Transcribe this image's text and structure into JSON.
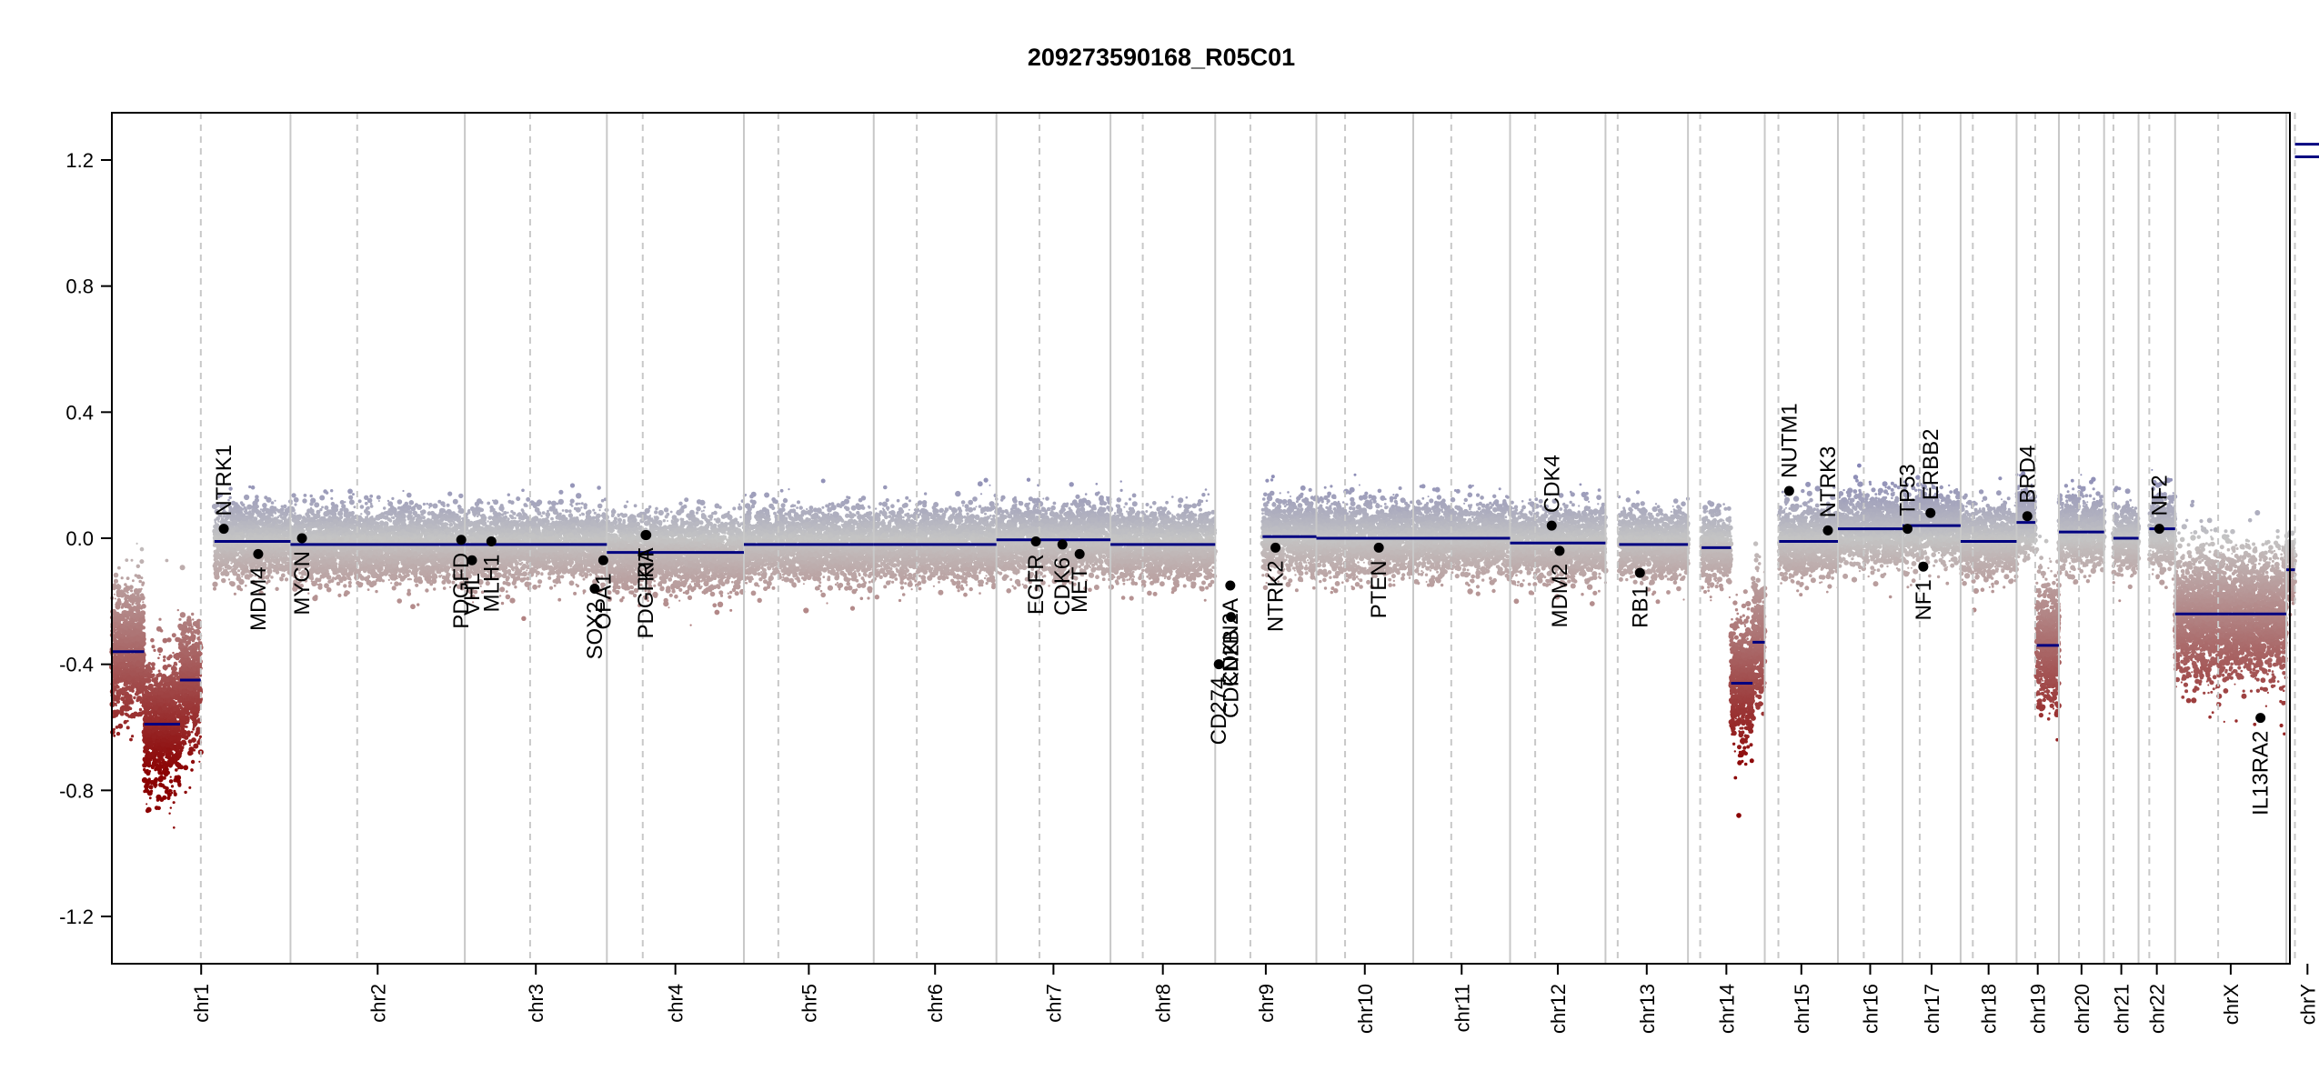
{
  "chart_data": {
    "type": "scatter",
    "title": "209273590168_R05C01",
    "xlabel": "",
    "ylabel": "",
    "ylim": [
      -1.35,
      1.35
    ],
    "y_ticks": [
      {
        "value": 1.2,
        "label": "1.2"
      },
      {
        "value": 0.8,
        "label": "0.8"
      },
      {
        "value": 0.4,
        "label": "0.4"
      },
      {
        "value": 0.0,
        "label": "0.0"
      },
      {
        "value": -0.4,
        "label": "-0.4"
      },
      {
        "value": -0.8,
        "label": "-0.8"
      },
      {
        "value": -1.2,
        "label": "-1.2"
      }
    ],
    "genome_length_mb": 3036,
    "grid": "chromosome boundaries (solid) and centromeres (dashed)",
    "colors": {
      "gain": "#7272b0",
      "neutral": "#c4c4c4",
      "loss": "#8b0000",
      "segment": "#000080",
      "gene": "#000000",
      "boundary": "#c8c8c8",
      "centromere": "#c8c8c8"
    },
    "chromosomes": [
      {
        "name": "chr1",
        "length": 249,
        "centromere": 124
      },
      {
        "name": "chr2",
        "length": 243,
        "centromere": 93
      },
      {
        "name": "chr3",
        "length": 198,
        "centromere": 91
      },
      {
        "name": "chr4",
        "length": 191,
        "centromere": 50
      },
      {
        "name": "chr5",
        "length": 181,
        "centromere": 48
      },
      {
        "name": "chr6",
        "length": 171,
        "centromere": 60
      },
      {
        "name": "chr7",
        "length": 159,
        "centromere": 60
      },
      {
        "name": "chr8",
        "length": 146,
        "centromere": 45
      },
      {
        "name": "chr9",
        "length": 141,
        "centromere": 49
      },
      {
        "name": "chr10",
        "length": 135,
        "centromere": 40
      },
      {
        "name": "chr11",
        "length": 135,
        "centromere": 53
      },
      {
        "name": "chr12",
        "length": 133,
        "centromere": 35
      },
      {
        "name": "chr13",
        "length": 115,
        "centromere": 17
      },
      {
        "name": "chr14",
        "length": 107,
        "centromere": 17
      },
      {
        "name": "chr15",
        "length": 102,
        "centromere": 19
      },
      {
        "name": "chr16",
        "length": 90,
        "centromere": 36
      },
      {
        "name": "chr17",
        "length": 81,
        "centromere": 24
      },
      {
        "name": "chr18",
        "length": 78,
        "centromere": 17
      },
      {
        "name": "chr19",
        "length": 59,
        "centromere": 26
      },
      {
        "name": "chr20",
        "length": 63,
        "centromere": 28
      },
      {
        "name": "chr21",
        "length": 48,
        "centromere": 13
      },
      {
        "name": "chr22",
        "length": 51,
        "centromere": 15
      },
      {
        "name": "chrX",
        "length": 155,
        "centromere": 60
      },
      {
        "name": "chrY",
        "length": 59,
        "centromere": 12
      }
    ],
    "segments": [
      {
        "chr": "chr1",
        "start": 0,
        "end": 45,
        "value": -0.36
      },
      {
        "chr": "chr1",
        "start": 45,
        "end": 95,
        "value": -0.59
      },
      {
        "chr": "chr1",
        "start": 95,
        "end": 124,
        "value": -0.45
      },
      {
        "chr": "chr1",
        "start": 143,
        "end": 249,
        "value": -0.01
      },
      {
        "chr": "chr2",
        "start": 0,
        "end": 243,
        "value": -0.02
      },
      {
        "chr": "chr3",
        "start": 0,
        "end": 198,
        "value": -0.02
      },
      {
        "chr": "chr4",
        "start": 0,
        "end": 191,
        "value": -0.045
      },
      {
        "chr": "chr5",
        "start": 0,
        "end": 181,
        "value": -0.02
      },
      {
        "chr": "chr6",
        "start": 0,
        "end": 171,
        "value": -0.02
      },
      {
        "chr": "chr7",
        "start": 0,
        "end": 159,
        "value": -0.005
      },
      {
        "chr": "chr8",
        "start": 0,
        "end": 146,
        "value": -0.02
      },
      {
        "chr": "chr9",
        "start": 66,
        "end": 141,
        "value": 0.005
      },
      {
        "chr": "chr10",
        "start": 0,
        "end": 135,
        "value": -0.0
      },
      {
        "chr": "chr11",
        "start": 0,
        "end": 135,
        "value": 0.0
      },
      {
        "chr": "chr12",
        "start": 0,
        "end": 133,
        "value": -0.015
      },
      {
        "chr": "chr13",
        "start": 19,
        "end": 115,
        "value": -0.02
      },
      {
        "chr": "chr14",
        "start": 19,
        "end": 60,
        "value": -0.03
      },
      {
        "chr": "chr14",
        "start": 60,
        "end": 90,
        "value": -0.46
      },
      {
        "chr": "chr14",
        "start": 90,
        "end": 107,
        "value": -0.33
      },
      {
        "chr": "chr15",
        "start": 20,
        "end": 102,
        "value": -0.01
      },
      {
        "chr": "chr16",
        "start": 0,
        "end": 90,
        "value": 0.03
      },
      {
        "chr": "chr17",
        "start": 0,
        "end": 81,
        "value": 0.04
      },
      {
        "chr": "chr18",
        "start": 0,
        "end": 78,
        "value": -0.01
      },
      {
        "chr": "chr19",
        "start": 0,
        "end": 26,
        "value": 0.05
      },
      {
        "chr": "chr19",
        "start": 28,
        "end": 59,
        "value": -0.34
      },
      {
        "chr": "chr20",
        "start": 0,
        "end": 63,
        "value": 0.02
      },
      {
        "chr": "chr21",
        "start": 13,
        "end": 48,
        "value": 0.0
      },
      {
        "chr": "chr22",
        "start": 15,
        "end": 51,
        "value": 0.03
      },
      {
        "chr": "chrX",
        "start": 0,
        "end": 155,
        "value": -0.24
      },
      {
        "chr": "chrY",
        "start": 0,
        "end": 12,
        "value": -0.1
      },
      {
        "chr": "chrY",
        "start": 12,
        "end": 59,
        "value": 1.21
      },
      {
        "chr": "chrY",
        "start": 12,
        "end": 59,
        "value": 1.25
      }
    ],
    "genes": [
      {
        "name": "NTRK1",
        "chr": "chr1",
        "pos": 156,
        "value": 0.03
      },
      {
        "name": "MDM4",
        "chr": "chr1",
        "pos": 204,
        "value": -0.05
      },
      {
        "name": "MYCN",
        "chr": "chr2",
        "pos": 16,
        "value": 0.0
      },
      {
        "name": "PDGFD",
        "chr": "chr2",
        "pos": 238,
        "value": -0.005
      },
      {
        "name": "VHL",
        "chr": "chr3",
        "pos": 10,
        "value": -0.07
      },
      {
        "name": "MLH1",
        "chr": "chr3",
        "pos": 37,
        "value": -0.01
      },
      {
        "name": "SOX2",
        "chr": "chr3",
        "pos": 181,
        "value": -0.16
      },
      {
        "name": "OPA1",
        "chr": "chr3",
        "pos": 193,
        "value": -0.07
      },
      {
        "name": "KIT",
        "chr": "chr4",
        "pos": 55,
        "value": 0.01
      },
      {
        "name": "PDGFRA",
        "chr": "chr4",
        "pos": 54,
        "value": 0.01
      },
      {
        "name": "EGFR",
        "chr": "chr7",
        "pos": 55,
        "value": -0.01
      },
      {
        "name": "CDK6",
        "chr": "chr7",
        "pos": 92,
        "value": -0.02
      },
      {
        "name": "MET",
        "chr": "chr7",
        "pos": 116,
        "value": -0.05
      },
      {
        "name": "CD274",
        "chr": "chr9",
        "pos": 5,
        "value": -0.4
      },
      {
        "name": "CDKN2A",
        "chr": "chr9",
        "pos": 21,
        "value": -0.15
      },
      {
        "name": "CDKN2B",
        "chr": "chr9",
        "pos": 22,
        "value": -0.25
      },
      {
        "name": "NTRK2",
        "chr": "chr9",
        "pos": 84,
        "value": -0.03
      },
      {
        "name": "PTEN",
        "chr": "chr10",
        "pos": 87,
        "value": -0.03
      },
      {
        "name": "CDK4",
        "chr": "chr12",
        "pos": 58,
        "value": 0.04
      },
      {
        "name": "MDM2",
        "chr": "chr12",
        "pos": 69,
        "value": -0.04
      },
      {
        "name": "RB1",
        "chr": "chr13",
        "pos": 48,
        "value": -0.11
      },
      {
        "name": "NUTM1",
        "chr": "chr15",
        "pos": 34,
        "value": 0.15
      },
      {
        "name": "NTRK3",
        "chr": "chr15",
        "pos": 88,
        "value": 0.025
      },
      {
        "name": "TP53",
        "chr": "chr17",
        "pos": 7,
        "value": 0.03
      },
      {
        "name": "NF1",
        "chr": "chr17",
        "pos": 29,
        "value": -0.09
      },
      {
        "name": "ERBB2",
        "chr": "chr17",
        "pos": 39,
        "value": 0.08
      },
      {
        "name": "BRD4",
        "chr": "chr19",
        "pos": 15,
        "value": 0.07
      },
      {
        "name": "NF2",
        "chr": "chr22",
        "pos": 29,
        "value": 0.03
      },
      {
        "name": "IL13RA2",
        "chr": "chrX",
        "pos": 119,
        "value": -0.57
      }
    ]
  }
}
